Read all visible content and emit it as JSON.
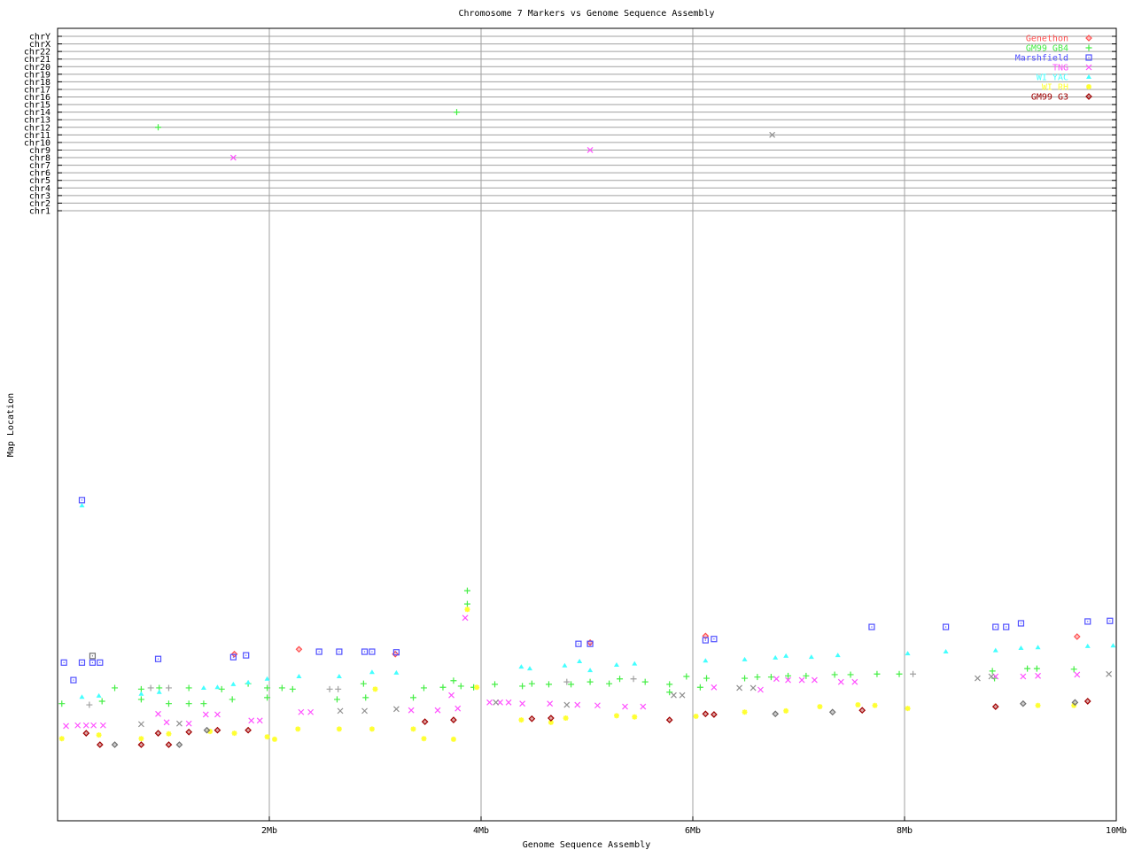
{
  "chart_data": {
    "type": "scatter",
    "title": "Chromosome 7 Markers vs Genome Sequence Assembly",
    "xlabel": "Genome Sequence Assembly",
    "ylabel": "Map Location",
    "xlim": [
      0,
      10
    ],
    "x_ticks": [
      {
        "value": 2,
        "label": "2Mb"
      },
      {
        "value": 4,
        "label": "4Mb"
      },
      {
        "value": 6,
        "label": "6Mb"
      },
      {
        "value": 8,
        "label": "8Mb"
      },
      {
        "value": 10,
        "label": "10Mb"
      }
    ],
    "ylim": [
      0,
      100
    ],
    "chromosome_labels": [
      "chr1",
      "chr2",
      "chr3",
      "chr4",
      "chr5",
      "chr6",
      "chr7",
      "chr8",
      "chr9",
      "chr10",
      "chr11",
      "chr12",
      "chr13",
      "chr14",
      "chr15",
      "chr16",
      "chr17",
      "chr18",
      "chr19",
      "chr20",
      "chr21",
      "chr22",
      "chrX",
      "chrY"
    ],
    "grid": true,
    "legend_position": "top-right",
    "series": [
      {
        "name": "Genethon",
        "color": "#ff5050",
        "marker": "diamond",
        "points": [
          [
            1.67,
            27.6
          ],
          [
            3.19,
            27.6
          ],
          [
            2.28,
            28.4
          ],
          [
            5.03,
            29.5
          ],
          [
            6.12,
            30.6
          ],
          [
            9.63,
            30.5
          ]
        ]
      },
      {
        "name": "GM99 GB4",
        "color": "#44ee44",
        "marker": "plus",
        "points": [
          [
            0.04,
            19.4
          ],
          [
            0.42,
            19.8
          ],
          [
            0.54,
            22.0
          ],
          [
            0.79,
            21.8
          ],
          [
            0.79,
            20.1
          ],
          [
            0.96,
            22.0
          ],
          [
            1.05,
            19.4
          ],
          [
            1.24,
            22.0
          ],
          [
            1.24,
            19.4
          ],
          [
            1.38,
            19.4
          ],
          [
            1.55,
            21.8
          ],
          [
            1.65,
            20.1
          ],
          [
            1.8,
            22.7
          ],
          [
            1.98,
            22.0
          ],
          [
            1.98,
            20.4
          ],
          [
            2.12,
            22.0
          ],
          [
            2.22,
            21.8
          ],
          [
            2.64,
            20.1
          ],
          [
            2.89,
            22.7
          ],
          [
            2.91,
            20.4
          ],
          [
            3.36,
            20.4
          ],
          [
            3.46,
            22.0
          ],
          [
            3.64,
            22.1
          ],
          [
            3.74,
            23.2
          ],
          [
            3.87,
            38.1
          ],
          [
            3.87,
            35.9
          ],
          [
            3.81,
            22.3
          ],
          [
            3.93,
            22.1
          ],
          [
            4.13,
            22.6
          ],
          [
            4.39,
            22.3
          ],
          [
            4.48,
            22.7
          ],
          [
            4.64,
            22.6
          ],
          [
            4.85,
            22.6
          ],
          [
            5.03,
            23.0
          ],
          [
            5.21,
            22.7
          ],
          [
            5.31,
            23.5
          ],
          [
            5.55,
            23.0
          ],
          [
            5.78,
            22.6
          ],
          [
            5.78,
            21.3
          ],
          [
            5.94,
            23.9
          ],
          [
            6.13,
            23.6
          ],
          [
            6.07,
            22.1
          ],
          [
            6.49,
            23.6
          ],
          [
            6.61,
            23.8
          ],
          [
            6.74,
            23.8
          ],
          [
            6.9,
            24.0
          ],
          [
            7.07,
            24.0
          ],
          [
            7.34,
            24.2
          ],
          [
            7.49,
            24.2
          ],
          [
            7.74,
            24.3
          ],
          [
            7.95,
            24.3
          ],
          [
            8.83,
            24.8
          ],
          [
            8.85,
            23.6
          ],
          [
            9.16,
            25.2
          ],
          [
            9.25,
            25.2
          ],
          [
            9.6,
            25.1
          ]
        ],
        "off_chromosome": [
          {
            "x": 0.95,
            "chr": "chr12"
          },
          {
            "x": 3.77,
            "chr": "chr14"
          }
        ]
      },
      {
        "name": "Marshfield",
        "color": "#5050ff",
        "marker": "square",
        "points": [
          [
            0.23,
            53.1
          ],
          [
            0.06,
            26.2
          ],
          [
            0.23,
            26.2
          ],
          [
            0.33,
            26.2
          ],
          [
            0.4,
            26.2
          ],
          [
            0.15,
            23.3
          ],
          [
            0.95,
            26.8
          ],
          [
            1.66,
            27.1
          ],
          [
            1.78,
            27.4
          ],
          [
            2.47,
            28.0
          ],
          [
            2.66,
            28.0
          ],
          [
            2.9,
            28.0
          ],
          [
            2.97,
            28.0
          ],
          [
            3.2,
            27.9
          ],
          [
            4.92,
            29.3
          ],
          [
            5.03,
            29.3
          ],
          [
            6.12,
            29.9
          ],
          [
            6.2,
            30.1
          ],
          [
            7.69,
            32.1
          ],
          [
            8.39,
            32.1
          ],
          [
            8.86,
            32.1
          ],
          [
            8.96,
            32.1
          ],
          [
            9.1,
            32.7
          ],
          [
            9.73,
            33.0
          ],
          [
            9.94,
            33.1
          ]
        ]
      },
      {
        "name": "TNG",
        "color": "#ff50ff",
        "marker": "x",
        "points": [
          [
            0.08,
            15.7
          ],
          [
            0.19,
            15.8
          ],
          [
            0.27,
            15.8
          ],
          [
            0.34,
            15.8
          ],
          [
            0.43,
            15.8
          ],
          [
            0.95,
            17.7
          ],
          [
            1.03,
            16.3
          ],
          [
            1.24,
            16.1
          ],
          [
            1.4,
            17.6
          ],
          [
            1.51,
            17.6
          ],
          [
            1.83,
            16.6
          ],
          [
            1.91,
            16.6
          ],
          [
            2.3,
            18.0
          ],
          [
            2.39,
            18.0
          ],
          [
            3.34,
            18.3
          ],
          [
            3.59,
            18.3
          ],
          [
            3.72,
            20.8
          ],
          [
            3.78,
            18.6
          ],
          [
            3.85,
            33.6
          ],
          [
            4.08,
            19.6
          ],
          [
            4.18,
            19.6
          ],
          [
            4.26,
            19.6
          ],
          [
            4.39,
            19.4
          ],
          [
            4.65,
            19.4
          ],
          [
            4.91,
            19.2
          ],
          [
            5.1,
            19.1
          ],
          [
            5.36,
            18.9
          ],
          [
            5.53,
            18.9
          ],
          [
            6.2,
            22.1
          ],
          [
            6.64,
            21.7
          ],
          [
            6.79,
            23.5
          ],
          [
            6.9,
            23.3
          ],
          [
            7.03,
            23.3
          ],
          [
            7.15,
            23.3
          ],
          [
            7.4,
            23.0
          ],
          [
            7.53,
            23.0
          ],
          [
            8.86,
            23.9
          ],
          [
            9.12,
            23.9
          ],
          [
            9.26,
            24.0
          ],
          [
            9.63,
            24.2
          ]
        ],
        "off_chromosome": [
          {
            "x": 1.66,
            "chr": "chr8"
          },
          {
            "x": 5.03,
            "chr": "chr9"
          }
        ]
      },
      {
        "name": "WI YAC",
        "color": "#44ffff",
        "marker": "triangle",
        "points": [
          [
            0.23,
            52.2
          ],
          [
            0.23,
            20.5
          ],
          [
            0.39,
            20.7
          ],
          [
            0.79,
            21.0
          ],
          [
            0.96,
            21.3
          ],
          [
            1.38,
            22.0
          ],
          [
            1.51,
            22.1
          ],
          [
            1.66,
            22.6
          ],
          [
            1.8,
            22.9
          ],
          [
            1.98,
            23.5
          ],
          [
            2.28,
            23.9
          ],
          [
            2.66,
            23.9
          ],
          [
            2.97,
            24.6
          ],
          [
            3.2,
            24.5
          ],
          [
            4.38,
            25.5
          ],
          [
            4.46,
            25.2
          ],
          [
            4.79,
            25.7
          ],
          [
            4.93,
            26.4
          ],
          [
            5.03,
            24.9
          ],
          [
            5.28,
            25.8
          ],
          [
            5.45,
            26.0
          ],
          [
            6.12,
            26.5
          ],
          [
            6.49,
            26.7
          ],
          [
            6.78,
            27.0
          ],
          [
            6.88,
            27.3
          ],
          [
            7.12,
            27.1
          ],
          [
            7.37,
            27.4
          ],
          [
            8.03,
            27.7
          ],
          [
            8.39,
            28.0
          ],
          [
            8.86,
            28.2
          ],
          [
            9.1,
            28.6
          ],
          [
            9.26,
            28.7
          ],
          [
            9.73,
            28.9
          ],
          [
            9.97,
            29.0
          ]
        ]
      },
      {
        "name": "WI RH",
        "color": "#ffff30",
        "marker": "star",
        "points": [
          [
            0.04,
            13.6
          ],
          [
            0.39,
            14.2
          ],
          [
            0.79,
            13.6
          ],
          [
            1.05,
            14.4
          ],
          [
            1.44,
            14.8
          ],
          [
            1.67,
            14.5
          ],
          [
            1.98,
            13.9
          ],
          [
            2.05,
            13.5
          ],
          [
            2.27,
            15.2
          ],
          [
            2.66,
            15.2
          ],
          [
            2.97,
            15.2
          ],
          [
            3.0,
            21.8
          ],
          [
            3.36,
            15.2
          ],
          [
            3.46,
            13.6
          ],
          [
            3.74,
            13.5
          ],
          [
            3.87,
            35.0
          ],
          [
            3.96,
            22.1
          ],
          [
            4.38,
            16.7
          ],
          [
            4.66,
            16.3
          ],
          [
            4.8,
            17.0
          ],
          [
            5.28,
            17.4
          ],
          [
            5.45,
            17.2
          ],
          [
            6.03,
            17.3
          ],
          [
            6.49,
            18.0
          ],
          [
            6.88,
            18.2
          ],
          [
            7.2,
            18.9
          ],
          [
            7.56,
            19.2
          ],
          [
            7.72,
            19.1
          ],
          [
            8.03,
            18.6
          ],
          [
            9.26,
            19.1
          ],
          [
            9.6,
            19.1
          ]
        ]
      },
      {
        "name": "GM99 G3",
        "color": "#a00000",
        "marker": "diamond",
        "points": [
          [
            0.27,
            14.5
          ],
          [
            0.4,
            12.6
          ],
          [
            0.79,
            12.6
          ],
          [
            0.95,
            14.5
          ],
          [
            1.05,
            12.6
          ],
          [
            1.24,
            14.7
          ],
          [
            1.51,
            15.0
          ],
          [
            1.8,
            15.0
          ],
          [
            3.47,
            16.4
          ],
          [
            3.74,
            16.7
          ],
          [
            4.48,
            16.9
          ],
          [
            4.66,
            17.0
          ],
          [
            5.78,
            16.7
          ],
          [
            6.12,
            17.7
          ],
          [
            6.2,
            17.6
          ],
          [
            7.6,
            18.3
          ],
          [
            8.86,
            18.9
          ],
          [
            9.73,
            19.8
          ]
        ]
      },
      {
        "name": "",
        "color": "#a0a0a0",
        "marker": "plus",
        "points": [
          [
            0.3,
            19.2
          ],
          [
            0.88,
            22.0
          ],
          [
            1.05,
            22.0
          ],
          [
            2.57,
            21.8
          ],
          [
            2.65,
            21.8
          ],
          [
            4.81,
            23.0
          ],
          [
            5.44,
            23.5
          ],
          [
            8.08,
            24.3
          ]
        ]
      },
      {
        "name": "",
        "color": "#909090",
        "marker": "x",
        "points": [
          [
            0.79,
            16.0
          ],
          [
            1.15,
            16.1
          ],
          [
            2.67,
            18.2
          ],
          [
            2.9,
            18.2
          ],
          [
            3.2,
            18.5
          ],
          [
            4.14,
            19.6
          ],
          [
            4.81,
            19.2
          ],
          [
            5.82,
            20.8
          ],
          [
            5.9,
            20.8
          ],
          [
            6.44,
            22.0
          ],
          [
            6.57,
            22.0
          ],
          [
            8.69,
            23.6
          ],
          [
            8.82,
            23.9
          ],
          [
            9.93,
            24.3
          ]
        ],
        "off_chromosome": [
          {
            "x": 6.75,
            "chr": "chr11"
          }
        ]
      },
      {
        "name": "",
        "color": "#707070",
        "marker": "diamond",
        "points": [
          [
            0.54,
            12.6
          ],
          [
            1.15,
            12.6
          ],
          [
            1.41,
            15.0
          ],
          [
            6.78,
            17.7
          ],
          [
            7.32,
            18.0
          ],
          [
            9.12,
            19.4
          ],
          [
            9.61,
            19.6
          ]
        ]
      },
      {
        "name": "",
        "color": "#707070",
        "marker": "square",
        "points": [
          [
            0.33,
            27.3
          ]
        ]
      }
    ]
  }
}
